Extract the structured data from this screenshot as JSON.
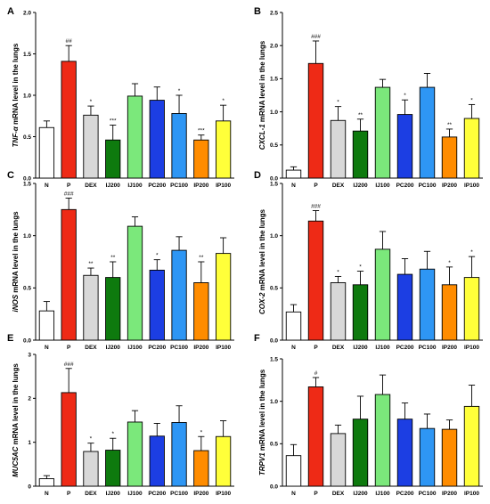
{
  "chart_data": [
    {
      "type": "bar",
      "panel": "A",
      "ylabel_italic": "TNF-α",
      "ylabel_rest": " mRNA level in the lungs",
      "ylim": [
        0,
        2.0
      ],
      "yticks": [
        "0.0",
        "0.5",
        "1.0",
        "1.5",
        "2.0"
      ],
      "ytick_values": [
        0,
        0.5,
        1.0,
        1.5,
        2.0
      ],
      "categories": [
        "N",
        "P",
        "DEX",
        "IJ200",
        "IJ100",
        "PC200",
        "PC100",
        "IP200",
        "IP100"
      ],
      "values": [
        0.61,
        1.41,
        0.76,
        0.46,
        0.99,
        0.94,
        0.78,
        0.46,
        0.69
      ],
      "errors": [
        0.08,
        0.19,
        0.11,
        0.18,
        0.15,
        0.16,
        0.22,
        0.06,
        0.19
      ],
      "significance": [
        "",
        "##",
        "*",
        "***",
        "",
        "",
        "*",
        "***",
        "*"
      ]
    },
    {
      "type": "bar",
      "panel": "B",
      "ylabel_italic": "CXCL-1",
      "ylabel_rest": " mRNA level in the lungs",
      "ylim": [
        0,
        2.5
      ],
      "yticks": [
        "0.0",
        "0.5",
        "1.0",
        "1.5",
        "2.0",
        "2.5"
      ],
      "ytick_values": [
        0,
        0.5,
        1.0,
        1.5,
        2.0,
        2.5
      ],
      "categories": [
        "N",
        "P",
        "DEX",
        "IJ200",
        "IJ100",
        "PC200",
        "PC100",
        "IP200",
        "IP100"
      ],
      "values": [
        0.12,
        1.73,
        0.87,
        0.71,
        1.37,
        0.96,
        1.37,
        0.62,
        0.9
      ],
      "errors": [
        0.05,
        0.34,
        0.21,
        0.18,
        0.12,
        0.22,
        0.21,
        0.12,
        0.21
      ],
      "significance": [
        "",
        "###",
        "*",
        "**",
        "",
        "*",
        "",
        "**",
        "*"
      ]
    },
    {
      "type": "bar",
      "panel": "C",
      "ylabel_italic": "iNOS",
      "ylabel_rest": " mRNA level in the lungs",
      "ylim": [
        0,
        1.5
      ],
      "yticks": [
        "0.0",
        "0.5",
        "1.0",
        "1.5"
      ],
      "ytick_values": [
        0,
        0.5,
        1.0,
        1.5
      ],
      "categories": [
        "N",
        "P",
        "DEX",
        "IJ200",
        "IJ100",
        "PC200",
        "PC100",
        "IP200",
        "IP100"
      ],
      "values": [
        0.28,
        1.25,
        0.62,
        0.6,
        1.09,
        0.67,
        0.86,
        0.55,
        0.83
      ],
      "errors": [
        0.09,
        0.11,
        0.07,
        0.15,
        0.09,
        0.1,
        0.13,
        0.2,
        0.15
      ],
      "significance": [
        "",
        "###",
        "**",
        "**",
        "",
        "*",
        "",
        "**",
        ""
      ]
    },
    {
      "type": "bar",
      "panel": "D",
      "ylabel_italic": "COX-2",
      "ylabel_rest": " mRNA level in the lungs",
      "ylim": [
        0,
        1.5
      ],
      "yticks": [
        "0.0",
        "0.5",
        "1.0",
        "1.5"
      ],
      "ytick_values": [
        0,
        0.5,
        1.0,
        1.5
      ],
      "categories": [
        "N",
        "P",
        "DEX",
        "IJ200",
        "IJ100",
        "PC200",
        "PC100",
        "IP200",
        "IP100"
      ],
      "values": [
        0.27,
        1.14,
        0.55,
        0.53,
        0.87,
        0.63,
        0.68,
        0.53,
        0.6
      ],
      "errors": [
        0.07,
        0.1,
        0.06,
        0.13,
        0.17,
        0.15,
        0.17,
        0.17,
        0.2
      ],
      "significance": [
        "",
        "###",
        "*",
        "*",
        "",
        "",
        "",
        "*",
        "*"
      ]
    },
    {
      "type": "bar",
      "panel": "E",
      "ylabel_italic": "MUC5AC",
      "ylabel_rest": " mRNA level in the lungs",
      "ylim": [
        0,
        3
      ],
      "yticks": [
        "0",
        "1",
        "2",
        "3"
      ],
      "ytick_values": [
        0,
        1,
        2,
        3
      ],
      "categories": [
        "N",
        "P",
        "DEX",
        "IJ200",
        "IJ100",
        "PC200",
        "PC100",
        "IP200",
        "IP100"
      ],
      "values": [
        0.17,
        2.13,
        0.79,
        0.82,
        1.46,
        1.14,
        1.45,
        0.81,
        1.13
      ],
      "errors": [
        0.07,
        0.55,
        0.19,
        0.27,
        0.26,
        0.29,
        0.38,
        0.32,
        0.36
      ],
      "significance": [
        "",
        "###",
        "*",
        "*",
        "",
        "",
        "",
        "*",
        ""
      ]
    },
    {
      "type": "bar",
      "panel": "F",
      "ylabel_italic": "TRPV1",
      "ylabel_rest": " mRNA level in the lungs",
      "ylim": [
        0,
        1.5
      ],
      "yticks": [
        "0.0",
        "0.5",
        "1.0",
        "1.5"
      ],
      "ytick_values": [
        0,
        0.5,
        1.0,
        1.5
      ],
      "categories": [
        "N",
        "P",
        "DEX",
        "IJ200",
        "IJ100",
        "PC200",
        "PC100",
        "IP200",
        "IP100"
      ],
      "values": [
        0.36,
        1.17,
        0.62,
        0.79,
        1.08,
        0.79,
        0.68,
        0.67,
        0.94
      ],
      "errors": [
        0.13,
        0.11,
        0.1,
        0.27,
        0.23,
        0.19,
        0.17,
        0.11,
        0.25
      ],
      "significance": [
        "",
        "#",
        "",
        "",
        "",
        "",
        "",
        "",
        ""
      ]
    }
  ],
  "bar_colors": [
    "#ffffff",
    "#ee2a16",
    "#d8d8d8",
    "#0e7a0e",
    "#7be87b",
    "#1c3ee3",
    "#2e96f4",
    "#ff8c00",
    "#ffff3a"
  ]
}
